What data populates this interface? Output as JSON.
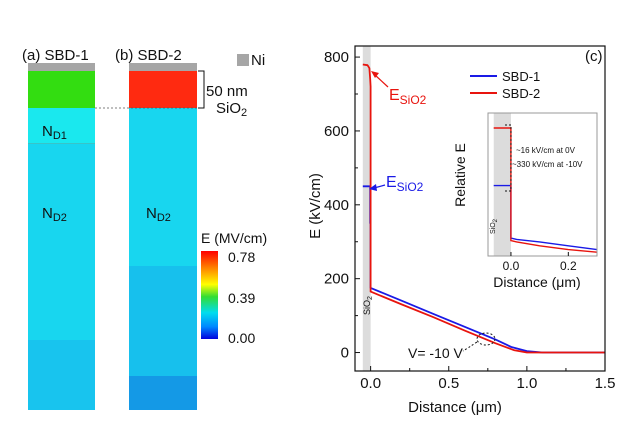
{
  "colors": {
    "ni": "#a6a6a6",
    "oxide_sbd1": "#33dd11",
    "oxide_sbd2": "#ff2a10",
    "nd1": "#1ae8ee",
    "nd2_upper": "#18d6ef",
    "nd2_lower": "#18c4ee",
    "nd2_sbd2_mid": "#17c0ed",
    "nd2_sbd2_low": "#1499e6",
    "sbd1_line": "#1a1ae6",
    "sbd2_line": "#e8140e"
  },
  "structure": {
    "sbd1_label": "(a) SBD-1",
    "sbd2_label": "(b) SBD-2",
    "ni_label": "Ni",
    "thickness_value": "50 nm",
    "oxide_label": "SiO",
    "oxide_sub": "2",
    "nd1_main": "N",
    "nd1_sub": "D1",
    "nd2_main": "N",
    "nd2_sub": "D2",
    "nd2b_main": "N",
    "nd2b_sub": "D2"
  },
  "colorbar": {
    "title": "E (MV/cm)",
    "max": "0.78",
    "mid": "0.39",
    "min": "0.00",
    "stops": [
      "#ff0000",
      "#ff8800",
      "#ffff00",
      "#33dd33",
      "#00ddee",
      "#0088ff",
      "#0000dd"
    ]
  },
  "chart_data": {
    "type": "line",
    "panel_label": "(c)",
    "xlabel": "Distance (μm)",
    "ylabel": "E (kV/cm)",
    "xlim": [
      -0.1,
      1.5
    ],
    "ylim": [
      -50,
      830
    ],
    "xticks": [
      "0.0",
      "0.5",
      "1.0",
      "1.5"
    ],
    "yticks": [
      "0",
      "200",
      "400",
      "600",
      "800"
    ],
    "xtick_values": [
      0.0,
      0.5,
      1.0,
      1.5
    ],
    "ytick_values": [
      0,
      200,
      400,
      600,
      800
    ],
    "legend": "top-right",
    "series": [
      {
        "name": "SBD-1",
        "color": "#1a1ae6",
        "points": [
          [
            -0.05,
            450
          ],
          [
            -0.003,
            450
          ],
          [
            -0.003,
            350
          ],
          [
            0.0,
            350
          ],
          [
            0.0,
            175
          ],
          [
            0.2,
            140
          ],
          [
            0.4,
            105
          ],
          [
            0.6,
            70
          ],
          [
            0.8,
            35
          ],
          [
            0.9,
            15
          ],
          [
            1.0,
            4
          ],
          [
            1.1,
            0
          ],
          [
            1.5,
            0
          ]
        ]
      },
      {
        "name": "SBD-2",
        "color": "#e8140e",
        "points": [
          [
            -0.05,
            780
          ],
          [
            -0.02,
            778
          ],
          [
            -0.008,
            770
          ],
          [
            -0.003,
            740
          ],
          [
            0.0,
            720
          ],
          [
            0.0,
            165
          ],
          [
            0.2,
            130
          ],
          [
            0.4,
            96
          ],
          [
            0.6,
            60
          ],
          [
            0.8,
            25
          ],
          [
            0.92,
            6
          ],
          [
            1.0,
            0
          ],
          [
            1.5,
            0
          ]
        ]
      }
    ],
    "annotations": {
      "e_red_main": "E",
      "e_red_sub": "SiO2",
      "e_blue_main": "E",
      "e_blue_sub": "SiO2",
      "bias": "V= -10 V",
      "oxide_main": "SiO",
      "oxide_sub": "2"
    },
    "inset": {
      "xlabel": "Distance (μm)",
      "ylabel": "Relative E",
      "xlim": [
        -0.08,
        0.3
      ],
      "xticks": [
        "0.0",
        "0.2"
      ],
      "xtick_values": [
        0.0,
        0.2
      ],
      "note1": "~16 kV/cm at 0V",
      "note2": "~330 kV/cm at -10V",
      "oxide_main": "SiO",
      "oxide_sub": "2",
      "series": [
        {
          "name": "SBD-1",
          "color": "#1a1ae6",
          "points": [
            [
              -0.06,
              0.55
            ],
            [
              0.0,
              0.55
            ],
            [
              0.0,
              0.14
            ],
            [
              0.02,
              0.13
            ],
            [
              0.1,
              0.11
            ],
            [
              0.2,
              0.08
            ],
            [
              0.3,
              0.05
            ]
          ]
        },
        {
          "name": "SBD-2",
          "color": "#e8140e",
          "points": [
            [
              -0.06,
              1.0
            ],
            [
              0.0,
              1.0
            ],
            [
              0.0,
              0.12
            ],
            [
              0.02,
              0.11
            ],
            [
              0.1,
              0.08
            ],
            [
              0.2,
              0.05
            ],
            [
              0.3,
              0.03
            ]
          ]
        }
      ]
    }
  }
}
